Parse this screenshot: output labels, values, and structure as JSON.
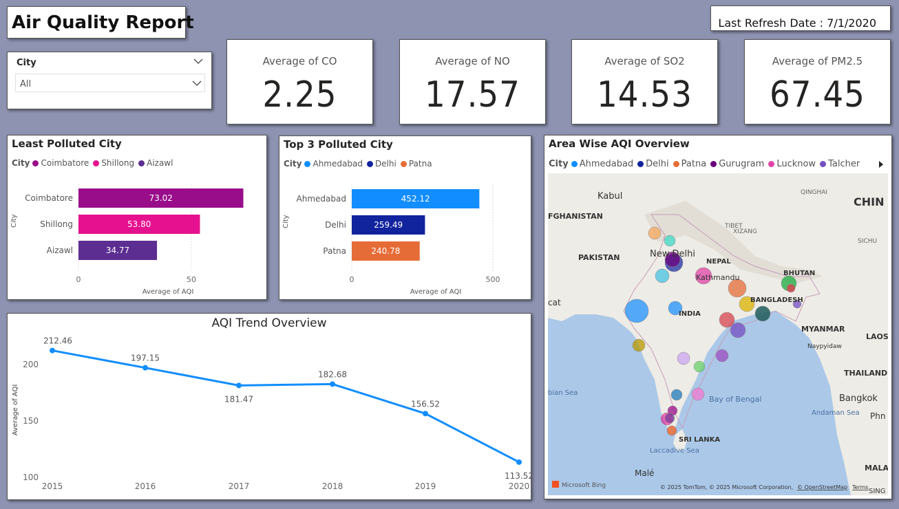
{
  "title": "Air Quality Report",
  "refresh": "Last Refresh Date : 7/1/2020",
  "slicer": {
    "label": "City",
    "value": "All"
  },
  "kpis": [
    {
      "label": "Average of CO",
      "value": "2.25"
    },
    {
      "label": "Average of NO",
      "value": "17.57"
    },
    {
      "label": "Average of SO2",
      "value": "14.53"
    },
    {
      "label": "Average of PM2.5",
      "value": "67.45"
    }
  ],
  "least_polluted": {
    "title": "Least Polluted City",
    "legend_title": "City",
    "ylabel": "City",
    "xlabel": "Average of AQI",
    "ticks": [
      "0",
      "50"
    ],
    "colors": [
      "#990d8a",
      "#e6118f",
      "#5c2e91"
    ],
    "chart_data": {
      "type": "bar",
      "categories": [
        "Coimbatore",
        "Shillong",
        "Aizawl"
      ],
      "values": [
        73.02,
        53.8,
        34.77
      ],
      "labels": [
        "73.02",
        "53.80",
        "34.77"
      ]
    }
  },
  "top_polluted": {
    "title": "Top 3 Polluted City",
    "legend_title": "City",
    "ylabel": "City",
    "xlabel": "Average of AQI",
    "ticks": [
      "0",
      "500"
    ],
    "colors": [
      "#118dff",
      "#12239e",
      "#e66c37"
    ],
    "chart_data": {
      "type": "bar",
      "categories": [
        "Ahmedabad",
        "Delhi",
        "Patna"
      ],
      "values": [
        452.12,
        259.49,
        240.78
      ],
      "labels": [
        "452.12",
        "259.49",
        "240.78"
      ]
    }
  },
  "trend": {
    "title": "AQI Trend Overview",
    "ylabel": "Average of AQI",
    "yticks": [
      "100",
      "150",
      "200"
    ],
    "color": "#118dff",
    "chart_data": {
      "type": "line",
      "x": [
        "2015",
        "2016",
        "2017",
        "2018",
        "2019",
        "2020"
      ],
      "values": [
        212.46,
        197.15,
        181.47,
        182.68,
        156.52,
        113.52
      ],
      "labels": [
        "212.46",
        "197.15",
        "181.47",
        "182.68",
        "156.52",
        "113.52"
      ],
      "ylim": [
        100,
        220
      ]
    }
  },
  "map": {
    "title": "Area Wise AQI Overview",
    "legend_title": "City",
    "legend": [
      {
        "name": "Ahmedabad",
        "color": "#118dff"
      },
      {
        "name": "Delhi",
        "color": "#12239e"
      },
      {
        "name": "Patna",
        "color": "#e66c37"
      },
      {
        "name": "Gurugram",
        "color": "#6b007b"
      },
      {
        "name": "Lucknow",
        "color": "#e044a7"
      },
      {
        "name": "Talcher",
        "color": "#744ec2"
      }
    ],
    "labels": {
      "kabul": "Kabul",
      "afghanistan": "FGHANISTAN",
      "pakistan": "PAKISTAN",
      "newdelhi": "New Delhi",
      "nepal": "NEPAL",
      "kathmandu": "Kathmandu",
      "bhutan": "BHUTAN",
      "bangladesh": "BANGLADESH",
      "india": "INDIA",
      "myanmar": "MYANMAR",
      "naypyidaw": "Naypyidaw",
      "laos": "LAOS",
      "thailand": "THAILAND",
      "bangkok": "Bangkok",
      "china": "CHIN",
      "qinghai": "QINGHAI",
      "tibet": "TIBET",
      "sichu": "SICHU",
      "xizang": "XIZANG",
      "bay": "Bay of Bengal",
      "arabian": "bian Sea",
      "srilanka": "SRI LANKA",
      "laccadive": "Laccadive Sea",
      "andaman": "Andaman Sea",
      "male": "Malé",
      "malay": "MALA",
      "sing": "SING",
      "cat": "cat",
      "phn": "Phn"
    },
    "bing": "Microsoft Bing",
    "copyright": "© 2025 TomTom, © 2025 Microsoft Corporation,",
    "osm": "© OpenStreetMap",
    "terms": "Terms"
  }
}
